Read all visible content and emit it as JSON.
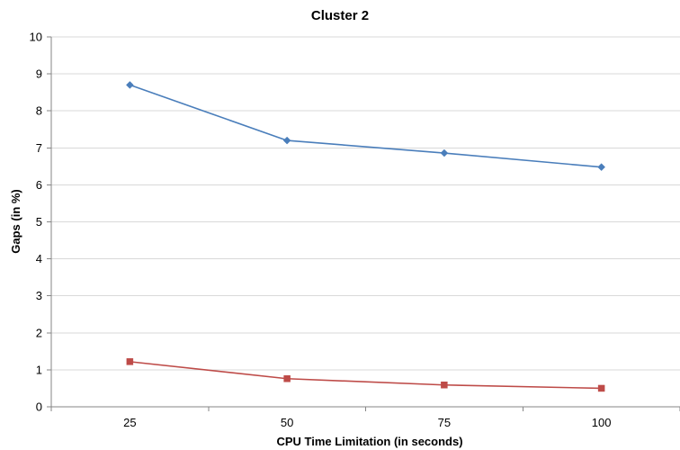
{
  "chart_data": {
    "type": "line",
    "title": "Cluster 2",
    "xlabel": "CPU Time Limitation (in seconds)",
    "ylabel": "Gaps (in %)",
    "categories": [
      "25",
      "50",
      "75",
      "100"
    ],
    "ylim": [
      0,
      10
    ],
    "yticks": [
      0,
      1,
      2,
      3,
      4,
      5,
      6,
      7,
      8,
      9,
      10
    ],
    "grid": true,
    "legend": "none",
    "series": [
      {
        "values": [
          8.7,
          7.2,
          6.86,
          6.48
        ],
        "color": "#4a7ebb",
        "marker": "diamond"
      },
      {
        "values": [
          1.22,
          0.76,
          0.59,
          0.5
        ],
        "color": "#be4b48",
        "marker": "square"
      }
    ]
  }
}
